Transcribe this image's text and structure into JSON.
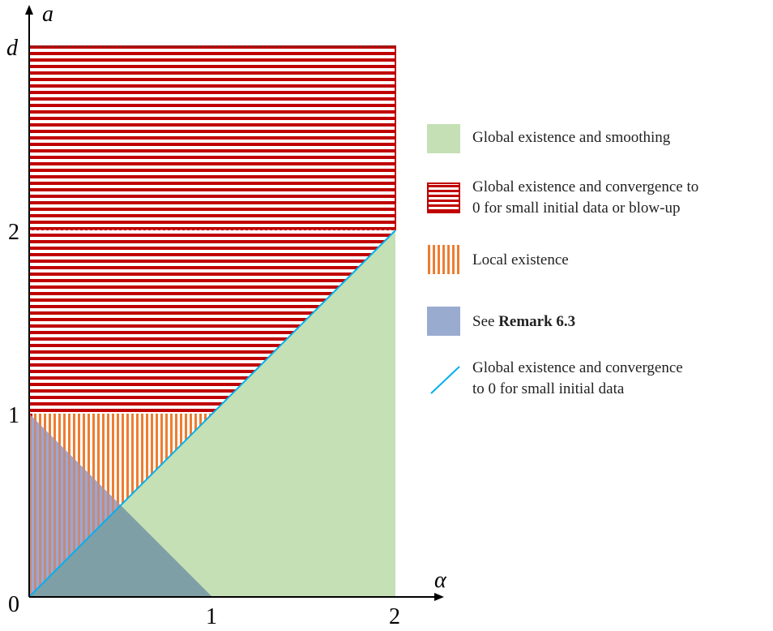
{
  "axes": {
    "x_label": "α",
    "y_label": "a",
    "x_ticks": [
      "0",
      "1",
      "2"
    ],
    "y_ticks": [
      "0",
      "1",
      "2",
      "d"
    ]
  },
  "colors": {
    "green": "#c5e0b4",
    "red_stripe": "#c00000",
    "orange_stripe": "#ed7d31",
    "blue_region": "#8ea9db",
    "blue_overlap": "#7f9fa7",
    "cyan_line": "#00b0f0"
  },
  "legend": {
    "green": "Global existence and smoothing",
    "red_line1": "Global existence and convergence to",
    "red_line2": "0 for small initial data or blow-up",
    "orange": "Local existence",
    "blue_prefix": "See ",
    "blue_ref": "Remark 6.3",
    "line_line1": "Global existence and convergence",
    "line_line2": "to 0 for small initial data"
  }
}
